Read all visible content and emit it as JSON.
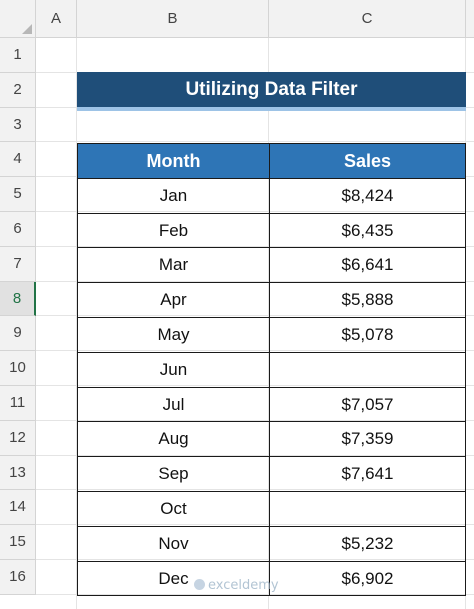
{
  "columns": [
    "A",
    "B",
    "C"
  ],
  "rows": [
    "1",
    "2",
    "3",
    "4",
    "5",
    "6",
    "7",
    "8",
    "9",
    "10",
    "11",
    "12",
    "13",
    "14",
    "15",
    "16"
  ],
  "active_row": "8",
  "title": "Utilizing Data Filter",
  "table": {
    "headers": [
      "Month",
      "Sales"
    ],
    "rows": [
      {
        "month": "Jan",
        "sales": "$8,424"
      },
      {
        "month": "Feb",
        "sales": "$6,435"
      },
      {
        "month": "Mar",
        "sales": "$6,641"
      },
      {
        "month": "Apr",
        "sales": "$5,888"
      },
      {
        "month": "May",
        "sales": "$5,078"
      },
      {
        "month": "Jun",
        "sales": ""
      },
      {
        "month": "Jul",
        "sales": "$7,057"
      },
      {
        "month": "Aug",
        "sales": "$7,359"
      },
      {
        "month": "Sep",
        "sales": "$7,641"
      },
      {
        "month": "Oct",
        "sales": ""
      },
      {
        "month": "Nov",
        "sales": "$5,232"
      },
      {
        "month": "Dec",
        "sales": "$6,902"
      }
    ]
  },
  "watermark": "exceldemy",
  "colors": {
    "title_bg": "#1f4e79",
    "header_bg": "#2e75b6",
    "accent": "#217346"
  }
}
